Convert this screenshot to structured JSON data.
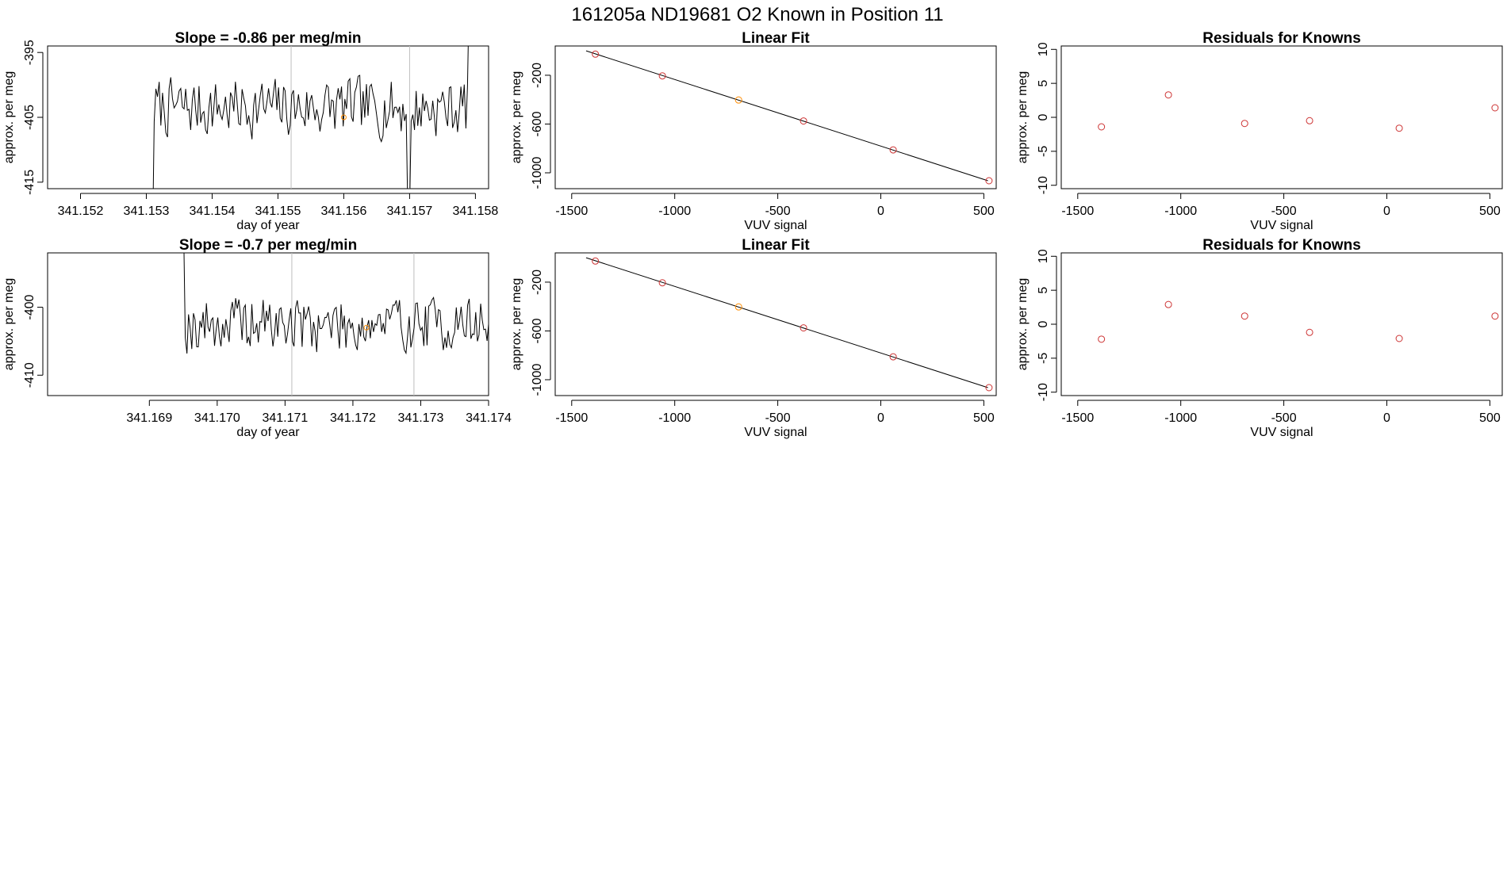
{
  "page_title": "161205a     ND19681   O2 Known in Position  11",
  "colors": {
    "trace": "#000000",
    "vline": "#bebebe",
    "marker_red": "#cd3333",
    "marker_orange": "#ff8c00",
    "fit_line": "#000000"
  },
  "chart_data": [
    {
      "type": "line",
      "title": "Slope =  -0.86  per meg/min",
      "xlabel": "day of year",
      "ylabel": "approx. per meg",
      "xlim": [
        341.1515,
        341.1582
      ],
      "ylim": [
        -416,
        -394
      ],
      "xticks": [
        "341.152",
        "341.153",
        "341.154",
        "341.155",
        "341.156",
        "341.157",
        "341.158"
      ],
      "xtick_values": [
        341.152,
        341.153,
        341.154,
        341.155,
        341.156,
        341.157,
        341.158
      ],
      "yticks": [
        "-415",
        "-405",
        "-395"
      ],
      "ytick_values": [
        -415,
        -405,
        -395
      ],
      "trace_start": 341.15312,
      "trace_end": 341.15788,
      "trace_mean": -403.5,
      "trace_amp": 2.6,
      "trace_seed": 7,
      "start_from": -420,
      "end_to": -392,
      "vlines": [
        341.1552,
        341.157
      ],
      "dropout_at": 341.15698,
      "marker": {
        "x": 341.156,
        "y": -405
      }
    },
    {
      "type": "scatter",
      "title": "Linear Fit",
      "xlabel": "VUV signal",
      "ylabel": "approx. per meg",
      "xlim": [
        -1580,
        560
      ],
      "ylim": [
        -1130,
        40
      ],
      "xticks": [
        "-1500",
        "-1000",
        "-500",
        "0",
        "500"
      ],
      "xtick_values": [
        -1500,
        -1000,
        -500,
        0,
        500
      ],
      "yticks": [
        "-1000",
        "-600",
        "-200"
      ],
      "ytick_values": [
        -1000,
        -600,
        -200
      ],
      "fit_line": [
        [
          -1430,
          0
        ],
        [
          520,
          -1065
        ]
      ],
      "points": [
        {
          "x": -1385,
          "y": -27,
          "kind": "red"
        },
        {
          "x": -1060,
          "y": -205,
          "kind": "red"
        },
        {
          "x": -690,
          "y": -403,
          "kind": "orange"
        },
        {
          "x": -375,
          "y": -575,
          "kind": "red"
        },
        {
          "x": 60,
          "y": -812,
          "kind": "red"
        },
        {
          "x": 525,
          "y": -1065,
          "kind": "red"
        }
      ]
    },
    {
      "type": "scatter",
      "title": "Residuals for Knowns",
      "xlabel": "VUV signal",
      "ylabel": "approx. per meg",
      "xlim": [
        -1580,
        560
      ],
      "ylim": [
        -10.5,
        10.5
      ],
      "xticks": [
        "-1500",
        "-1000",
        "-500",
        "0",
        "500"
      ],
      "xtick_values": [
        -1500,
        -1000,
        -500,
        0,
        500
      ],
      "yticks": [
        "-10",
        "-5",
        "0",
        "5",
        "10"
      ],
      "ytick_values": [
        -10,
        -5,
        0,
        5,
        10
      ],
      "points": [
        {
          "x": -1385,
          "y": -1.4,
          "kind": "red"
        },
        {
          "x": -1060,
          "y": 3.3,
          "kind": "red"
        },
        {
          "x": -690,
          "y": -0.9,
          "kind": "red"
        },
        {
          "x": -375,
          "y": -0.5,
          "kind": "red"
        },
        {
          "x": 60,
          "y": -1.6,
          "kind": "red"
        },
        {
          "x": 525,
          "y": 1.4,
          "kind": "red"
        }
      ]
    },
    {
      "type": "line",
      "title": "Slope =  -0.7  per meg/min",
      "xlabel": "day of year",
      "ylabel": "approx. per meg",
      "xlim": [
        341.1675,
        341.174
      ],
      "ylim": [
        -413,
        -392
      ],
      "xticks": [
        "341.169",
        "341.170",
        "341.171",
        "341.172",
        "341.173",
        "341.174"
      ],
      "xtick_values": [
        341.169,
        341.17,
        341.171,
        341.172,
        341.173,
        341.174
      ],
      "yticks": [
        "-410",
        "-400"
      ],
      "ytick_values": [
        -410,
        -400
      ],
      "trace_start": 341.16953,
      "trace_end": 341.17405,
      "trace_mean": -402.5,
      "trace_amp": 2.4,
      "trace_seed": 19,
      "start_from": -392,
      "end_to": -410,
      "vlines": [
        341.1711,
        341.1729
      ],
      "dropout_at": null,
      "marker": {
        "x": 341.1722,
        "y": -403
      }
    },
    {
      "type": "scatter",
      "title": "Linear Fit",
      "xlabel": "VUV signal",
      "ylabel": "approx. per meg",
      "xlim": [
        -1580,
        560
      ],
      "ylim": [
        -1130,
        40
      ],
      "xticks": [
        "-1500",
        "-1000",
        "-500",
        "0",
        "500"
      ],
      "xtick_values": [
        -1500,
        -1000,
        -500,
        0,
        500
      ],
      "yticks": [
        "-1000",
        "-600",
        "-200"
      ],
      "ytick_values": [
        -1000,
        -600,
        -200
      ],
      "fit_line": [
        [
          -1430,
          0
        ],
        [
          520,
          -1065
        ]
      ],
      "points": [
        {
          "x": -1385,
          "y": -27,
          "kind": "red"
        },
        {
          "x": -1060,
          "y": -205,
          "kind": "red"
        },
        {
          "x": -690,
          "y": -403,
          "kind": "orange"
        },
        {
          "x": -375,
          "y": -575,
          "kind": "red"
        },
        {
          "x": 60,
          "y": -812,
          "kind": "red"
        },
        {
          "x": 525,
          "y": -1065,
          "kind": "red"
        }
      ]
    },
    {
      "type": "scatter",
      "title": "Residuals for Knowns",
      "xlabel": "VUV signal",
      "ylabel": "approx. per meg",
      "xlim": [
        -1580,
        560
      ],
      "ylim": [
        -10.5,
        10.5
      ],
      "xticks": [
        "-1500",
        "-1000",
        "-500",
        "0",
        "500"
      ],
      "xtick_values": [
        -1500,
        -1000,
        -500,
        0,
        500
      ],
      "yticks": [
        "-10",
        "-5",
        "0",
        "5",
        "10"
      ],
      "ytick_values": [
        -10,
        -5,
        0,
        5,
        10
      ],
      "points": [
        {
          "x": -1385,
          "y": -2.2,
          "kind": "red"
        },
        {
          "x": -1060,
          "y": 2.9,
          "kind": "red"
        },
        {
          "x": -690,
          "y": 1.2,
          "kind": "red"
        },
        {
          "x": -375,
          "y": -1.2,
          "kind": "red"
        },
        {
          "x": 60,
          "y": -2.1,
          "kind": "red"
        },
        {
          "x": 525,
          "y": 1.2,
          "kind": "red"
        }
      ]
    }
  ]
}
